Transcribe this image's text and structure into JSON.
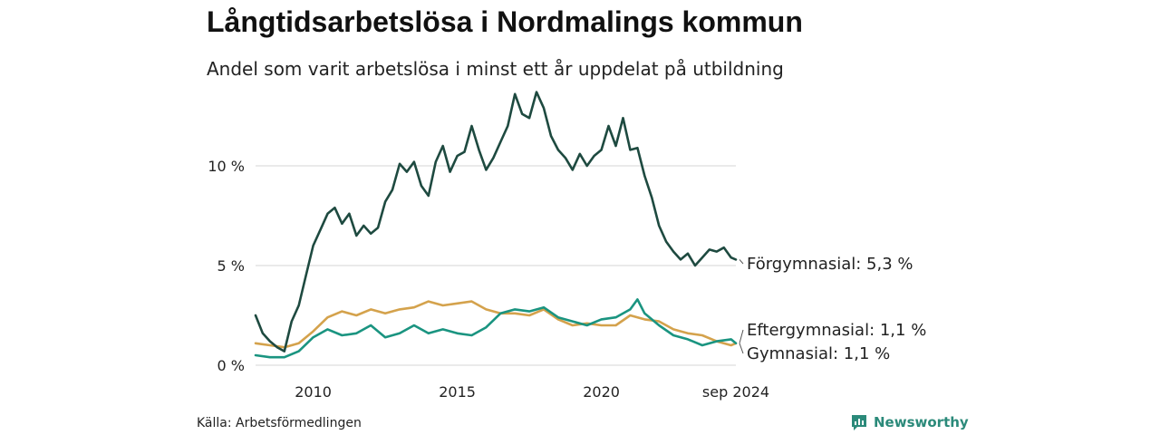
{
  "title": "Långtidsarbetslösa i Nordmalings kommun",
  "subtitle": "Andel som varit arbetslösa i minst ett år uppdelat på utbildning",
  "source": "Källa: Arbetsförmedlingen",
  "brand": {
    "name": "Newsworthy",
    "icon": "chart-bubble-icon"
  },
  "colors": {
    "forgymnasial": "#1e4a40",
    "eftergymnasial": "#d4a24c",
    "gymnasial": "#1a9480",
    "grid": "#dddddd",
    "text": "#222222"
  },
  "chart_data": {
    "type": "line",
    "title": "Långtidsarbetslösa i Nordmalings kommun",
    "ylim": [
      0,
      14
    ],
    "xlim": [
      "2008-01",
      "2024-09"
    ],
    "y_ticks": [
      {
        "value": 0,
        "label": "0 %"
      },
      {
        "value": 5,
        "label": "5 %"
      },
      {
        "value": 10,
        "label": "10 %"
      }
    ],
    "x_ticks": [
      {
        "value": "2010-01",
        "label": "2010"
      },
      {
        "value": "2015-01",
        "label": "2015"
      },
      {
        "value": "2020-01",
        "label": "2020"
      },
      {
        "value": "2024-09",
        "label": "sep 2024"
      }
    ],
    "grid": true,
    "series": [
      {
        "name": "Förgymnasial",
        "label": "Förgymnasial: 5,3 %",
        "color": "#1e4a40",
        "points": [
          [
            "2008-01",
            2.5
          ],
          [
            "2008-04",
            1.6
          ],
          [
            "2008-07",
            1.2
          ],
          [
            "2008-10",
            0.9
          ],
          [
            "2009-01",
            0.7
          ],
          [
            "2009-04",
            2.2
          ],
          [
            "2009-07",
            3.0
          ],
          [
            "2009-10",
            4.5
          ],
          [
            "2010-01",
            6.0
          ],
          [
            "2010-04",
            6.8
          ],
          [
            "2010-07",
            7.6
          ],
          [
            "2010-10",
            7.9
          ],
          [
            "2011-01",
            7.1
          ],
          [
            "2011-04",
            7.6
          ],
          [
            "2011-07",
            6.5
          ],
          [
            "2011-10",
            7.0
          ],
          [
            "2012-01",
            6.6
          ],
          [
            "2012-04",
            6.9
          ],
          [
            "2012-07",
            8.2
          ],
          [
            "2012-10",
            8.8
          ],
          [
            "2013-01",
            10.1
          ],
          [
            "2013-04",
            9.7
          ],
          [
            "2013-07",
            10.2
          ],
          [
            "2013-10",
            9.0
          ],
          [
            "2014-01",
            8.5
          ],
          [
            "2014-04",
            10.2
          ],
          [
            "2014-07",
            11.0
          ],
          [
            "2014-10",
            9.7
          ],
          [
            "2015-01",
            10.5
          ],
          [
            "2015-04",
            10.7
          ],
          [
            "2015-07",
            12.0
          ],
          [
            "2015-10",
            10.8
          ],
          [
            "2016-01",
            9.8
          ],
          [
            "2016-04",
            10.4
          ],
          [
            "2016-07",
            11.2
          ],
          [
            "2016-10",
            12.0
          ],
          [
            "2017-01",
            13.6
          ],
          [
            "2017-04",
            12.6
          ],
          [
            "2017-07",
            12.4
          ],
          [
            "2017-10",
            13.7
          ],
          [
            "2018-01",
            12.9
          ],
          [
            "2018-04",
            11.5
          ],
          [
            "2018-07",
            10.8
          ],
          [
            "2018-10",
            10.4
          ],
          [
            "2019-01",
            9.8
          ],
          [
            "2019-04",
            10.6
          ],
          [
            "2019-07",
            10.0
          ],
          [
            "2019-10",
            10.5
          ],
          [
            "2020-01",
            10.8
          ],
          [
            "2020-04",
            12.0
          ],
          [
            "2020-07",
            11.0
          ],
          [
            "2020-10",
            12.4
          ],
          [
            "2021-01",
            10.8
          ],
          [
            "2021-04",
            10.9
          ],
          [
            "2021-07",
            9.5
          ],
          [
            "2021-10",
            8.4
          ],
          [
            "2022-01",
            7.0
          ],
          [
            "2022-04",
            6.2
          ],
          [
            "2022-07",
            5.7
          ],
          [
            "2022-10",
            5.3
          ],
          [
            "2023-01",
            5.6
          ],
          [
            "2023-04",
            5.0
          ],
          [
            "2023-07",
            5.4
          ],
          [
            "2023-10",
            5.8
          ],
          [
            "2024-01",
            5.7
          ],
          [
            "2024-04",
            5.9
          ],
          [
            "2024-07",
            5.4
          ],
          [
            "2024-09",
            5.3
          ]
        ]
      },
      {
        "name": "Eftergymnasial",
        "label": "Eftergymnasial: 1,1 %",
        "color": "#d4a24c",
        "points": [
          [
            "2008-01",
            1.1
          ],
          [
            "2008-07",
            1.0
          ],
          [
            "2009-01",
            0.9
          ],
          [
            "2009-07",
            1.1
          ],
          [
            "2010-01",
            1.7
          ],
          [
            "2010-07",
            2.4
          ],
          [
            "2011-01",
            2.7
          ],
          [
            "2011-07",
            2.5
          ],
          [
            "2012-01",
            2.8
          ],
          [
            "2012-07",
            2.6
          ],
          [
            "2013-01",
            2.8
          ],
          [
            "2013-07",
            2.9
          ],
          [
            "2014-01",
            3.2
          ],
          [
            "2014-07",
            3.0
          ],
          [
            "2015-01",
            3.1
          ],
          [
            "2015-07",
            3.2
          ],
          [
            "2016-01",
            2.8
          ],
          [
            "2016-07",
            2.6
          ],
          [
            "2017-01",
            2.6
          ],
          [
            "2017-07",
            2.5
          ],
          [
            "2018-01",
            2.8
          ],
          [
            "2018-07",
            2.3
          ],
          [
            "2019-01",
            2.0
          ],
          [
            "2019-07",
            2.1
          ],
          [
            "2020-01",
            2.0
          ],
          [
            "2020-07",
            2.0
          ],
          [
            "2021-01",
            2.5
          ],
          [
            "2021-07",
            2.3
          ],
          [
            "2022-01",
            2.2
          ],
          [
            "2022-07",
            1.8
          ],
          [
            "2023-01",
            1.6
          ],
          [
            "2023-07",
            1.5
          ],
          [
            "2024-01",
            1.2
          ],
          [
            "2024-07",
            1.0
          ],
          [
            "2024-09",
            1.1
          ]
        ]
      },
      {
        "name": "Gymnasial",
        "label": "Gymnasial: 1,1 %",
        "color": "#1a9480",
        "points": [
          [
            "2008-01",
            0.5
          ],
          [
            "2008-07",
            0.4
          ],
          [
            "2009-01",
            0.4
          ],
          [
            "2009-07",
            0.7
          ],
          [
            "2010-01",
            1.4
          ],
          [
            "2010-07",
            1.8
          ],
          [
            "2011-01",
            1.5
          ],
          [
            "2011-07",
            1.6
          ],
          [
            "2012-01",
            2.0
          ],
          [
            "2012-07",
            1.4
          ],
          [
            "2013-01",
            1.6
          ],
          [
            "2013-07",
            2.0
          ],
          [
            "2014-01",
            1.6
          ],
          [
            "2014-07",
            1.8
          ],
          [
            "2015-01",
            1.6
          ],
          [
            "2015-07",
            1.5
          ],
          [
            "2016-01",
            1.9
          ],
          [
            "2016-07",
            2.6
          ],
          [
            "2017-01",
            2.8
          ],
          [
            "2017-07",
            2.7
          ],
          [
            "2018-01",
            2.9
          ],
          [
            "2018-07",
            2.4
          ],
          [
            "2019-01",
            2.2
          ],
          [
            "2019-07",
            2.0
          ],
          [
            "2020-01",
            2.3
          ],
          [
            "2020-07",
            2.4
          ],
          [
            "2021-01",
            2.8
          ],
          [
            "2021-04",
            3.3
          ],
          [
            "2021-07",
            2.6
          ],
          [
            "2022-01",
            2.0
          ],
          [
            "2022-07",
            1.5
          ],
          [
            "2023-01",
            1.3
          ],
          [
            "2023-07",
            1.0
          ],
          [
            "2024-01",
            1.2
          ],
          [
            "2024-07",
            1.3
          ],
          [
            "2024-09",
            1.1
          ]
        ]
      }
    ]
  }
}
